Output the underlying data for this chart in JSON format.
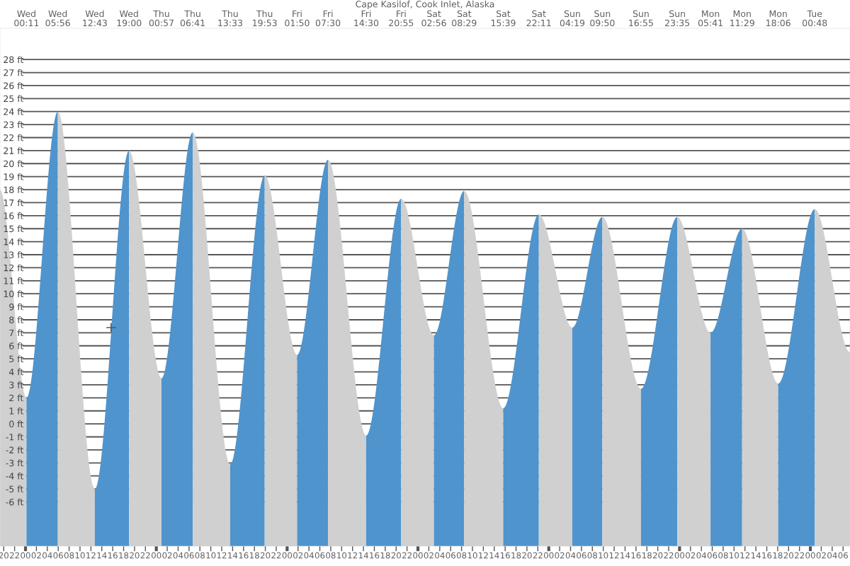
{
  "chart_data": {
    "type": "area",
    "title": "Cape Kasilof, Cook Inlet, Alaska",
    "series": [
      {
        "color": "#d0d0d0",
        "x": [
          19.32,
          24.18
        ],
        "values": [
          18,
          2.0
        ]
      },
      {
        "color": "#4f94cd",
        "x": [
          24.18,
          29.93
        ],
        "values": [
          2.0,
          24.0
        ]
      },
      {
        "color": "#d0d0d0",
        "x": [
          29.93,
          36.72
        ],
        "values": [
          24.0,
          -5.0
        ]
      },
      {
        "color": "#4f94cd",
        "x": [
          36.72,
          43
        ],
        "values": [
          -5.0,
          21.0
        ]
      },
      {
        "color": "#d0d0d0",
        "x": [
          43,
          48.95
        ],
        "values": [
          21.0,
          3.5
        ]
      },
      {
        "color": "#4f94cd",
        "x": [
          48.95,
          54.68
        ],
        "values": [
          3.5,
          22.4
        ]
      },
      {
        "color": "#d0d0d0",
        "x": [
          54.68,
          61.55
        ],
        "values": [
          22.4,
          -3.1
        ]
      },
      {
        "color": "#4f94cd",
        "x": [
          61.55,
          67.88
        ],
        "values": [
          -3.1,
          19.1
        ]
      },
      {
        "color": "#d0d0d0",
        "x": [
          67.88,
          73.83
        ],
        "values": [
          19.1,
          5.3
        ]
      },
      {
        "color": "#4f94cd",
        "x": [
          73.83,
          79.5
        ],
        "values": [
          5.3,
          20.3
        ]
      },
      {
        "color": "#d0d0d0",
        "x": [
          79.5,
          86.5
        ],
        "values": [
          20.3,
          -0.9
        ]
      },
      {
        "color": "#4f94cd",
        "x": [
          86.5,
          92.92
        ],
        "values": [
          -0.9,
          17.3
        ]
      },
      {
        "color": "#d0d0d0",
        "x": [
          92.92,
          98.93
        ],
        "values": [
          17.3,
          6.8
        ]
      },
      {
        "color": "#4f94cd",
        "x": [
          98.93,
          104.48
        ],
        "values": [
          6.8,
          17.9
        ]
      },
      {
        "color": "#d0d0d0",
        "x": [
          104.48,
          111.65
        ],
        "values": [
          17.9,
          1.2
        ]
      },
      {
        "color": "#4f94cd",
        "x": [
          111.65,
          118.18
        ],
        "values": [
          1.2,
          16.1
        ]
      },
      {
        "color": "#d0d0d0",
        "x": [
          118.18,
          124.32
        ],
        "values": [
          16.1,
          7.4
        ]
      },
      {
        "color": "#4f94cd",
        "x": [
          124.32,
          129.83
        ],
        "values": [
          7.4,
          15.9
        ]
      },
      {
        "color": "#d0d0d0",
        "x": [
          129.83,
          136.92
        ],
        "values": [
          15.9,
          2.7
        ]
      },
      {
        "color": "#4f94cd",
        "x": [
          136.92,
          143.58
        ],
        "values": [
          2.7,
          15.9
        ]
      },
      {
        "color": "#d0d0d0",
        "x": [
          143.58,
          149.68
        ],
        "values": [
          15.9,
          7.0
        ]
      },
      {
        "color": "#4f94cd",
        "x": [
          149.68,
          155.48
        ],
        "values": [
          7.0,
          15.0
        ]
      },
      {
        "color": "#d0d0d0",
        "x": [
          155.48,
          162.1
        ],
        "values": [
          15.0,
          3.1
        ]
      },
      {
        "color": "#4f94cd",
        "x": [
          162.1,
          168.8
        ],
        "values": [
          3.1,
          16.5
        ]
      },
      {
        "color": "#d0d0d0",
        "x": [
          168.8,
          175.27
        ],
        "values": [
          16.5,
          5.5
        ]
      },
      {
        "type": "scatter",
        "color": "#555555",
        "marker": "cross",
        "x": [
          39.7
        ],
        "values": [
          7.4
        ]
      }
    ],
    "xlim": [
      19.32,
      175.27
    ],
    "ylim": [
      -9.4,
      30.4
    ],
    "yticks": [
      {
        "value": -6,
        "label": "-6 ft"
      },
      {
        "value": -5,
        "label": "-5 ft"
      },
      {
        "value": -4,
        "label": "-4 ft"
      },
      {
        "value": -3,
        "label": "-3 ft"
      },
      {
        "value": -2,
        "label": "-2 ft"
      },
      {
        "value": -1,
        "label": "-1 ft"
      },
      {
        "value": 0,
        "label": "0 ft"
      },
      {
        "value": 1,
        "label": "1 ft"
      },
      {
        "value": 2,
        "label": "2 ft"
      },
      {
        "value": 3,
        "label": "3 ft"
      },
      {
        "value": 4,
        "label": "4 ft"
      },
      {
        "value": 5,
        "label": "5 ft"
      },
      {
        "value": 6,
        "label": "6 ft"
      },
      {
        "value": 7,
        "label": "7 ft"
      },
      {
        "value": 8,
        "label": "8 ft"
      },
      {
        "value": 9,
        "label": "9 ft"
      },
      {
        "value": 10,
        "label": "10 ft"
      },
      {
        "value": 11,
        "label": "11 ft"
      },
      {
        "value": 12,
        "label": "12 ft"
      },
      {
        "value": 13,
        "label": "13 ft"
      },
      {
        "value": 14,
        "label": "14 ft"
      },
      {
        "value": 15,
        "label": "15 ft"
      },
      {
        "value": 16,
        "label": "16 ft"
      },
      {
        "value": 17,
        "label": "17 ft"
      },
      {
        "value": 18,
        "label": "18 ft"
      },
      {
        "value": 19,
        "label": "19 ft"
      },
      {
        "value": 20,
        "label": "20 ft"
      },
      {
        "value": 21,
        "label": "21 ft"
      },
      {
        "value": 22,
        "label": "22 ft"
      },
      {
        "value": 23,
        "label": "23 ft"
      },
      {
        "value": 24,
        "label": "24 ft"
      },
      {
        "value": 25,
        "label": "25 ft"
      },
      {
        "value": 26,
        "label": "26 ft"
      },
      {
        "value": 27,
        "label": "27 ft"
      },
      {
        "value": 28,
        "label": "28 ft"
      }
    ],
    "xticks": [
      {
        "value": 20,
        "label": "20"
      },
      {
        "value": 22,
        "label": "22"
      },
      {
        "value": 24,
        "label": "00"
      },
      {
        "value": 26,
        "label": "02"
      },
      {
        "value": 28,
        "label": "04"
      },
      {
        "value": 30,
        "label": "06"
      },
      {
        "value": 32,
        "label": "08"
      },
      {
        "value": 34,
        "label": "10"
      },
      {
        "value": 36,
        "label": "12"
      },
      {
        "value": 38,
        "label": "14"
      },
      {
        "value": 40,
        "label": "16"
      },
      {
        "value": 42,
        "label": "18"
      },
      {
        "value": 44,
        "label": "20"
      },
      {
        "value": 46,
        "label": "22"
      },
      {
        "value": 48,
        "label": "00"
      },
      {
        "value": 50,
        "label": "02"
      },
      {
        "value": 52,
        "label": "04"
      },
      {
        "value": 54,
        "label": "06"
      },
      {
        "value": 56,
        "label": "08"
      },
      {
        "value": 58,
        "label": "10"
      },
      {
        "value": 60,
        "label": "12"
      },
      {
        "value": 62,
        "label": "14"
      },
      {
        "value": 64,
        "label": "16"
      },
      {
        "value": 66,
        "label": "18"
      },
      {
        "value": 68,
        "label": "20"
      },
      {
        "value": 70,
        "label": "22"
      },
      {
        "value": 72,
        "label": "00"
      },
      {
        "value": 74,
        "label": "02"
      },
      {
        "value": 76,
        "label": "04"
      },
      {
        "value": 78,
        "label": "06"
      },
      {
        "value": 80,
        "label": "08"
      },
      {
        "value": 82,
        "label": "10"
      },
      {
        "value": 84,
        "label": "12"
      },
      {
        "value": 86,
        "label": "14"
      },
      {
        "value": 88,
        "label": "16"
      },
      {
        "value": 90,
        "label": "18"
      },
      {
        "value": 92,
        "label": "20"
      },
      {
        "value": 94,
        "label": "22"
      },
      {
        "value": 96,
        "label": "00"
      },
      {
        "value": 98,
        "label": "02"
      },
      {
        "value": 100,
        "label": "04"
      },
      {
        "value": 102,
        "label": "06"
      },
      {
        "value": 104,
        "label": "08"
      },
      {
        "value": 106,
        "label": "10"
      },
      {
        "value": 108,
        "label": "12"
      },
      {
        "value": 110,
        "label": "14"
      },
      {
        "value": 112,
        "label": "16"
      },
      {
        "value": 114,
        "label": "18"
      },
      {
        "value": 116,
        "label": "20"
      },
      {
        "value": 118,
        "label": "22"
      },
      {
        "value": 120,
        "label": "00"
      },
      {
        "value": 122,
        "label": "02"
      },
      {
        "value": 124,
        "label": "04"
      },
      {
        "value": 126,
        "label": "06"
      },
      {
        "value": 128,
        "label": "08"
      },
      {
        "value": 130,
        "label": "10"
      },
      {
        "value": 132,
        "label": "12"
      },
      {
        "value": 134,
        "label": "14"
      },
      {
        "value": 136,
        "label": "16"
      },
      {
        "value": 138,
        "label": "18"
      },
      {
        "value": 140,
        "label": "20"
      },
      {
        "value": 142,
        "label": "22"
      },
      {
        "value": 144,
        "label": "00"
      },
      {
        "value": 146,
        "label": "02"
      },
      {
        "value": 148,
        "label": "04"
      },
      {
        "value": 150,
        "label": "06"
      },
      {
        "value": 152,
        "label": "08"
      },
      {
        "value": 154,
        "label": "10"
      },
      {
        "value": 156,
        "label": "12"
      },
      {
        "value": 158,
        "label": "14"
      },
      {
        "value": 160,
        "label": "16"
      },
      {
        "value": 162,
        "label": "18"
      },
      {
        "value": 164,
        "label": "20"
      },
      {
        "value": 166,
        "label": "22"
      },
      {
        "value": 168,
        "label": "00"
      },
      {
        "value": 170,
        "label": "02"
      },
      {
        "value": 172,
        "label": "04"
      },
      {
        "value": 174,
        "label": "06"
      }
    ],
    "annotations": [
      "Wed\n00:11",
      "Wed\n05:56",
      "Wed\n12:43",
      "Wed\n19:00",
      "Thu\n00:57",
      "Thu\n06:41",
      "Thu\n13:33",
      "Thu\n19:53",
      "Fri\n01:50",
      "Fri\n07:30",
      "Fri\n14:30",
      "Fri\n20:55",
      "Sat\n02:56",
      "Sat\n08:29",
      "Sat\n15:39",
      "Sat\n22:11",
      "Sun\n04:19",
      "Sun\n09:50",
      "Sun\n16:55",
      "Sun\n23:35",
      "Mon\n05:41",
      "Mon\n11:29",
      "Mon\n18:06",
      "Tue\n00:48"
    ],
    "grid": "y",
    "legend": false
  }
}
